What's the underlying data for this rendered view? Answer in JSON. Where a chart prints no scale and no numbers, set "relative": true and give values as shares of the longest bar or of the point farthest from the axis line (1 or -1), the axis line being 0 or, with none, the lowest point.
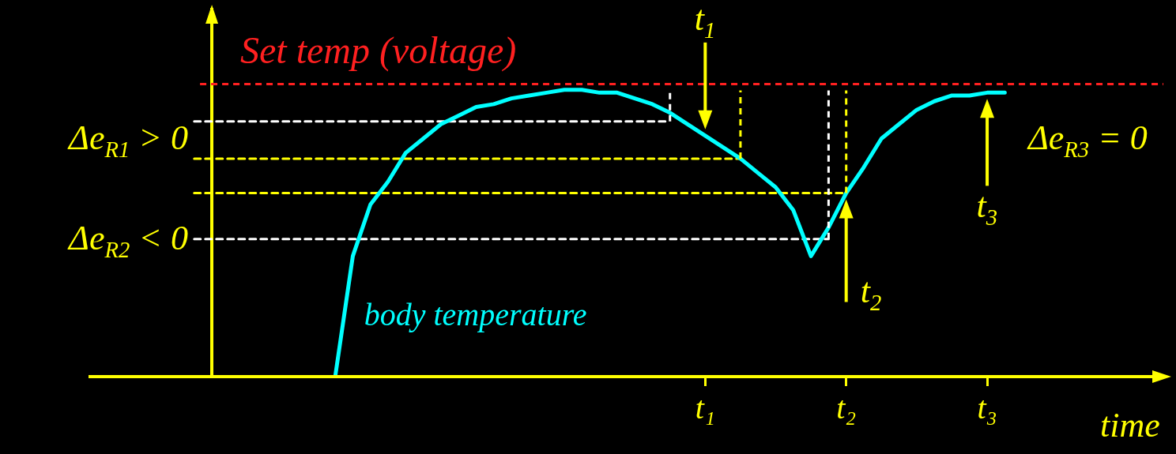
{
  "chart_data": {
    "type": "line",
    "relative": true,
    "xlabel": "time",
    "legend": false,
    "grid": false,
    "marker": "none",
    "categories": [
      null,
      null,
      null,
      null,
      null,
      null,
      null,
      null,
      null,
      null,
      null,
      null,
      null,
      null,
      null,
      null,
      null,
      null,
      null,
      null,
      null,
      null,
      null,
      null,
      null,
      null,
      null,
      null,
      null,
      null,
      null,
      null,
      null,
      null,
      null,
      "t₁",
      null,
      null,
      null,
      null,
      null,
      null,
      null,
      "t₂",
      null,
      null,
      null,
      null,
      null,
      null,
      null,
      "t₃",
      null,
      null,
      null,
      null,
      null,
      null,
      null,
      null,
      null,
      null
    ],
    "series": [
      {
        "name": "body temperature",
        "color": "#00ffff",
        "line_style": "solid",
        "values": [
          null,
          null,
          null,
          null,
          null,
          null,
          null,
          null,
          null,
          null,
          null,
          null,
          null,
          null,
          0,
          0.42,
          0.6,
          0.68,
          0.78,
          0.83,
          0.88,
          0.91,
          0.94,
          0.95,
          0.97,
          0.98,
          0.99,
          1,
          1,
          0.99,
          0.99,
          0.97,
          0.95,
          0.92,
          0.88,
          0.84,
          0.8,
          0.76,
          0.71,
          0.66,
          0.58,
          0.42,
          0.52,
          0.64,
          0.73,
          0.83,
          0.88,
          0.93,
          0.96,
          0.98,
          0.98,
          0.99,
          0.99,
          null,
          null,
          null,
          null,
          null,
          null,
          null,
          null,
          null
        ]
      },
      {
        "color": "#ffffff",
        "line_style": "dashed",
        "values": [
          null,
          null,
          null,
          null,
          null,
          null,
          0.89,
          null,
          null,
          null,
          null,
          null,
          null,
          null,
          null,
          null,
          null,
          null,
          null,
          null,
          null,
          null,
          null,
          null,
          null,
          null,
          null,
          null,
          null,
          null,
          null,
          null,
          null,
          0.89,
          null,
          null,
          null,
          null,
          null,
          null,
          null,
          null,
          null,
          null,
          null,
          null,
          null,
          null,
          null,
          null,
          null,
          null,
          null,
          null,
          null,
          null,
          null,
          null,
          null,
          null,
          null,
          null
        ]
      },
      {
        "color": "#ffff00",
        "line_style": "dashed",
        "values": [
          null,
          null,
          null,
          null,
          null,
          null,
          0.76,
          null,
          null,
          null,
          null,
          null,
          null,
          null,
          null,
          null,
          null,
          null,
          null,
          null,
          null,
          null,
          null,
          null,
          null,
          null,
          null,
          null,
          null,
          null,
          null,
          null,
          null,
          null,
          null,
          null,
          null,
          0.76,
          null,
          null,
          null,
          null,
          null,
          null,
          null,
          null,
          null,
          null,
          null,
          null,
          null,
          null,
          null,
          null,
          null,
          null,
          null,
          null,
          null,
          null,
          null,
          null
        ]
      },
      {
        "color": "#ffff00",
        "line_style": "dashed",
        "values": [
          null,
          null,
          null,
          null,
          null,
          null,
          0.64,
          null,
          null,
          null,
          null,
          null,
          null,
          null,
          null,
          null,
          null,
          null,
          null,
          null,
          null,
          null,
          null,
          null,
          null,
          null,
          null,
          null,
          null,
          null,
          null,
          null,
          null,
          null,
          null,
          null,
          null,
          null,
          null,
          null,
          null,
          null,
          null,
          0.64,
          null,
          null,
          null,
          null,
          null,
          null,
          null,
          null,
          null,
          null,
          null,
          null,
          null,
          null,
          null,
          null,
          null,
          null
        ]
      },
      {
        "color": "#ffffff",
        "line_style": "dashed",
        "values": [
          null,
          null,
          null,
          null,
          null,
          null,
          0.48,
          null,
          null,
          null,
          null,
          null,
          null,
          null,
          null,
          null,
          null,
          null,
          null,
          null,
          null,
          null,
          null,
          null,
          null,
          null,
          null,
          null,
          null,
          null,
          null,
          null,
          null,
          null,
          null,
          null,
          null,
          null,
          null,
          null,
          null,
          null,
          0.48,
          null,
          null,
          null,
          null,
          null,
          null,
          null,
          null,
          null,
          null,
          null,
          null,
          null,
          null,
          null,
          null,
          null,
          null,
          null
        ]
      }
    ],
    "ref_lines": [
      {
        "axis": "y",
        "value": 1.02,
        "label": "Set temp (voltage)",
        "color": "#ff2020",
        "line_style": "dashed"
      },
      {
        "axis": "y",
        "value": 0,
        "color": "#ffff00",
        "line_style": "solid"
      }
    ],
    "annotations": [
      "Δe$_{R1}$  > 0",
      "Δe$_{R2}$ < 0",
      "Δe$_{R3}$ = 0",
      {
        "text": "t$_{1}$",
        "x": "t₁",
        "y": 0.84
      },
      {
        "text": "t$_{2}$",
        "x": "t₂",
        "y": 0.64
      },
      {
        "text": "t$_{3}$",
        "x": "t₃",
        "y": 0.99
      }
    ]
  }
}
